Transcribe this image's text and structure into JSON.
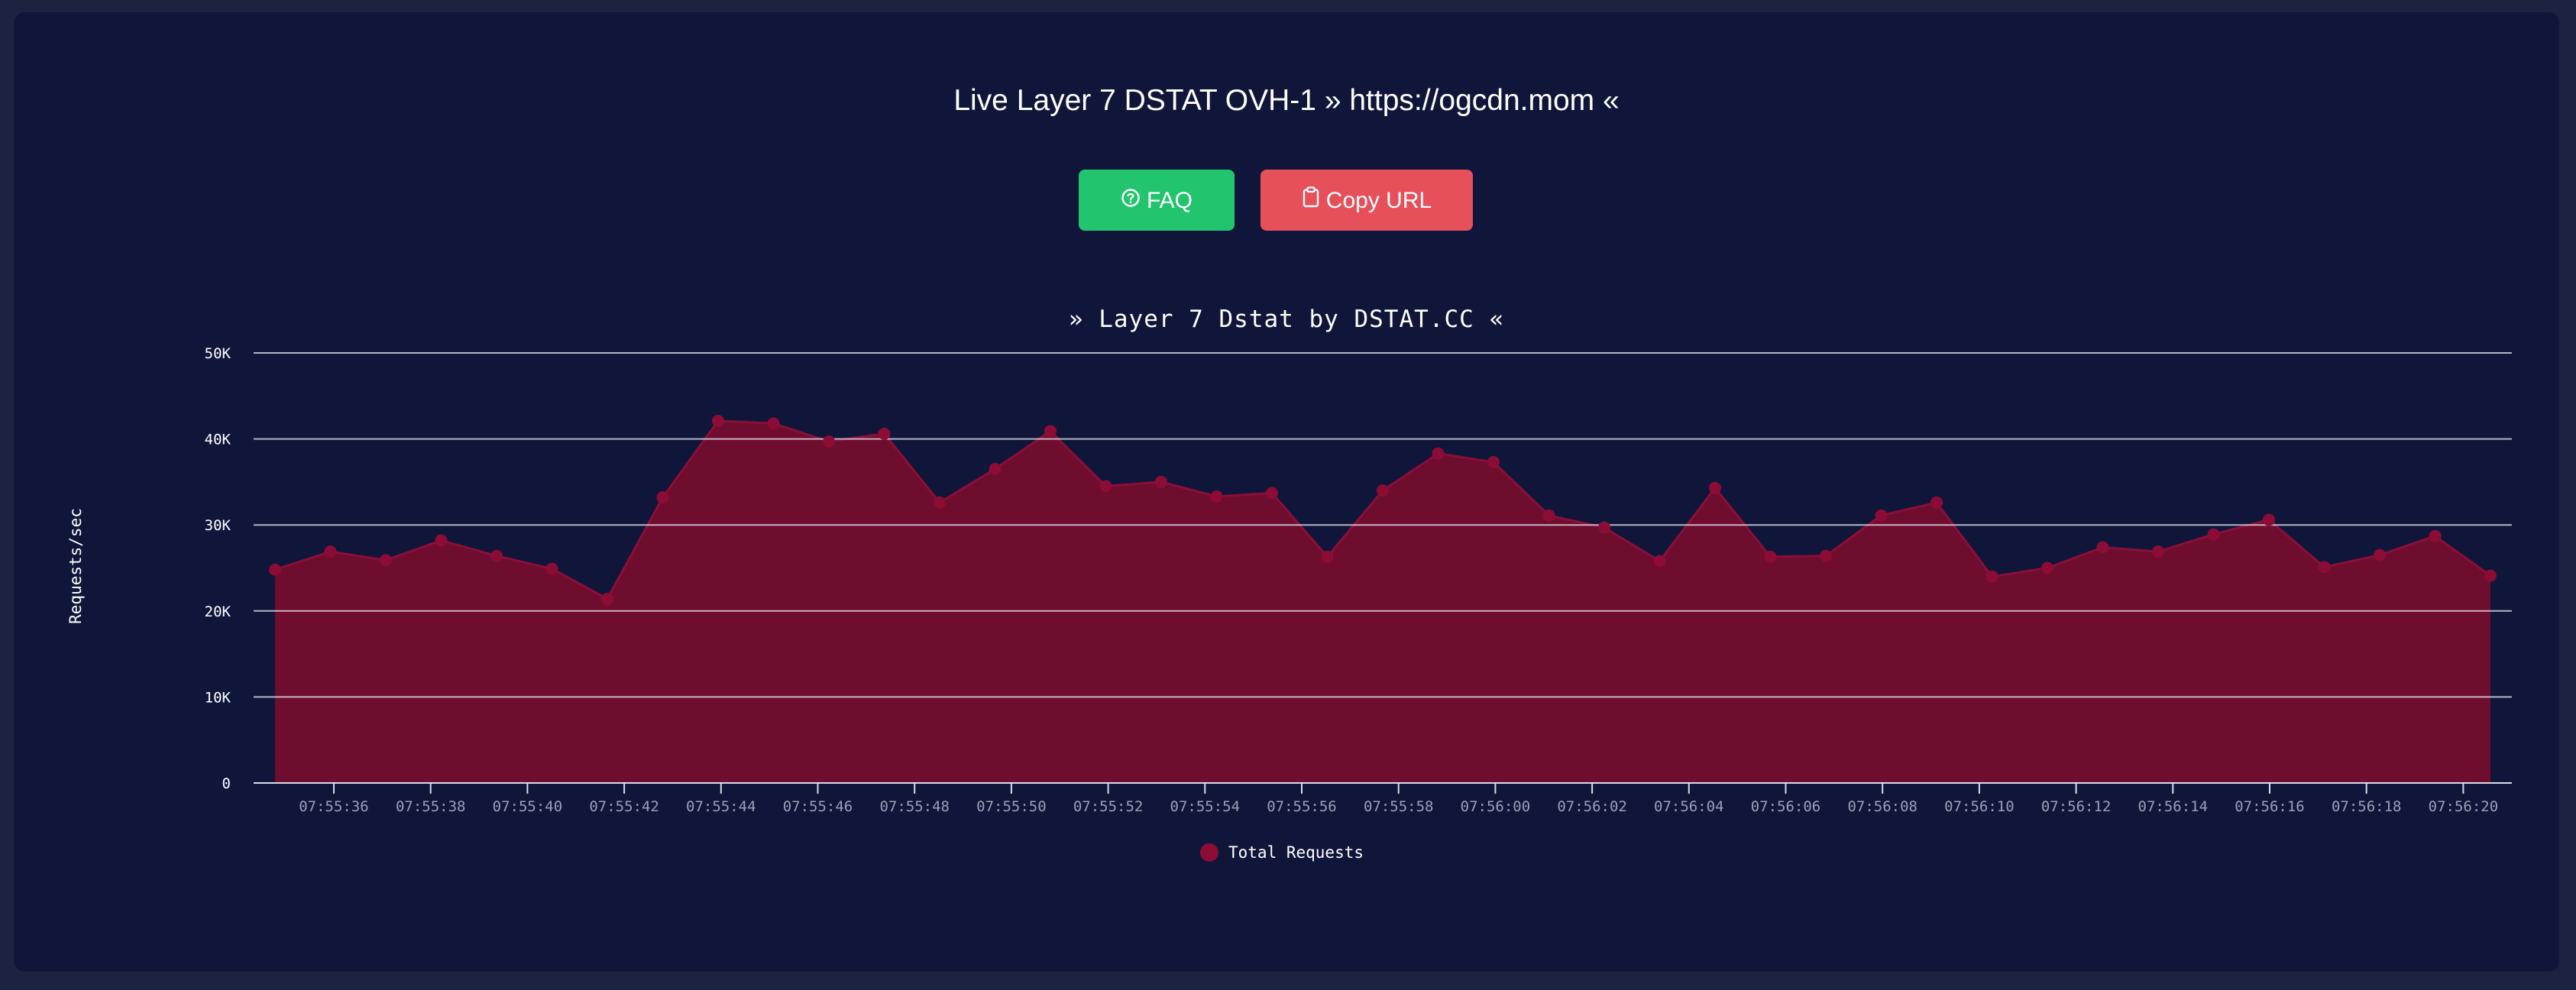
{
  "page": {
    "title": "Live Layer 7 DSTAT OVH-1 » https://ogcdn.mom «",
    "faq_label": "FAQ",
    "copy_label": "Copy URL"
  },
  "colors": {
    "background": "#1c2340",
    "panel": "#10163a",
    "faq_button": "#22c46e",
    "copy_button": "#e5505a",
    "area_fill": "#6e0d2e",
    "series_line": "#8a0f38",
    "point": "#8c0c35"
  },
  "icons": {
    "faq": "question-circle-icon",
    "copy": "clipboard-icon"
  },
  "chart_data": {
    "type": "area",
    "title": "» Layer 7 Dstat by DSTAT.CC «",
    "ylabel": "Requests/sec",
    "xlabel": "",
    "ylim": [
      0,
      50000
    ],
    "yticks": [
      {
        "value": 0,
        "label": "0"
      },
      {
        "value": 10000,
        "label": "10K"
      },
      {
        "value": 20000,
        "label": "20K"
      },
      {
        "value": 30000,
        "label": "30K"
      },
      {
        "value": 40000,
        "label": "40K"
      },
      {
        "value": 50000,
        "label": "50K"
      }
    ],
    "xticks": [
      "07:55:36",
      "07:55:38",
      "07:55:40",
      "07:55:42",
      "07:55:44",
      "07:55:46",
      "07:55:48",
      "07:55:50",
      "07:55:52",
      "07:55:54",
      "07:55:56",
      "07:55:58",
      "07:56:00",
      "07:56:02",
      "07:56:04",
      "07:56:06",
      "07:56:08",
      "07:56:10",
      "07:56:12",
      "07:56:14",
      "07:56:16",
      "07:56:18",
      "07:56:20"
    ],
    "grid": true,
    "legend_position": "bottom",
    "series": [
      {
        "name": "Total Requests",
        "values": [
          24800,
          26900,
          25900,
          28200,
          26400,
          24900,
          21400,
          33200,
          42100,
          41800,
          39700,
          40600,
          32600,
          36500,
          40900,
          34500,
          35000,
          33300,
          33700,
          26300,
          34000,
          38300,
          37300,
          31100,
          29700,
          25800,
          34300,
          26300,
          26400,
          31100,
          32600,
          24000,
          25000,
          27400,
          26900,
          28900,
          30600,
          25100,
          26500,
          28700,
          24100
        ]
      }
    ]
  }
}
